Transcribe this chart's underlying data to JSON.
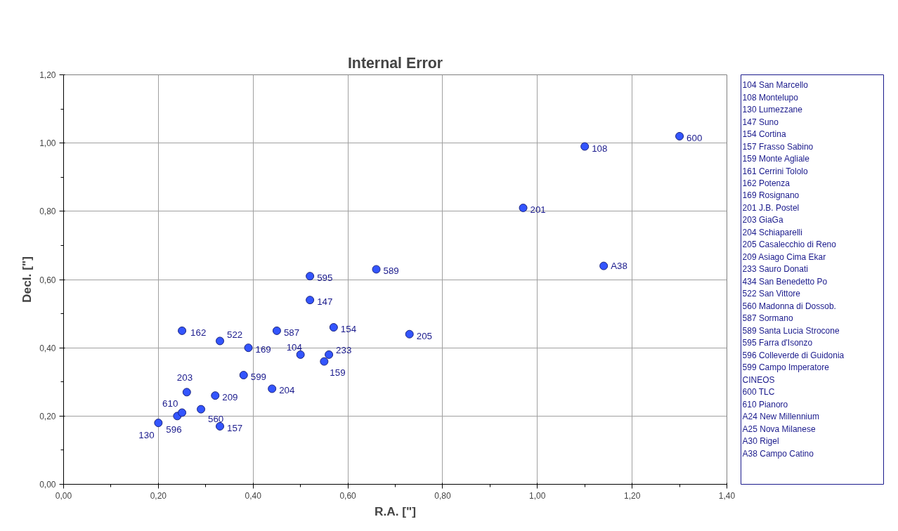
{
  "chart_data": [
    {
      "type": "scatter",
      "title": "Internal Error",
      "xlabel": "R.A. [\"]",
      "ylabel": "Decl. [\"]",
      "xlim": [
        0,
        1.4
      ],
      "ylim": [
        0,
        1.2
      ],
      "xticks": [
        {
          "value": 0,
          "label": "0,00"
        },
        {
          "value": 0.2,
          "label": "0,20"
        },
        {
          "value": 0.4,
          "label": "0,40"
        },
        {
          "value": 0.6,
          "label": "0,60"
        },
        {
          "value": 0.8,
          "label": "0,80"
        },
        {
          "value": 1.0,
          "label": "1,00"
        },
        {
          "value": 1.2,
          "label": "1,20"
        },
        {
          "value": 1.4,
          "label": "1,40"
        }
      ],
      "yticks": [
        {
          "value": 0,
          "label": "0,00"
        },
        {
          "value": 0.2,
          "label": "0,20"
        },
        {
          "value": 0.4,
          "label": "0,40"
        },
        {
          "value": 0.6,
          "label": "0,60"
        },
        {
          "value": 0.8,
          "label": "0,80"
        },
        {
          "value": 1.0,
          "label": "1,00"
        },
        {
          "value": 1.2,
          "label": "1,20"
        }
      ],
      "grid": true,
      "marker": "circle",
      "annotations": [
        {
          "text": "130",
          "x": 0.2,
          "y": 0.18
        },
        {
          "text": "596",
          "x": 0.24,
          "y": 0.2
        },
        {
          "text": "610",
          "x": 0.25,
          "y": 0.21
        },
        {
          "text": "203",
          "x": 0.26,
          "y": 0.27
        },
        {
          "text": "560",
          "x": 0.29,
          "y": 0.22
        },
        {
          "text": "157",
          "x": 0.33,
          "y": 0.17
        },
        {
          "text": "209",
          "x": 0.32,
          "y": 0.26
        },
        {
          "text": "162",
          "x": 0.25,
          "y": 0.45
        },
        {
          "text": "522",
          "x": 0.33,
          "y": 0.42
        },
        {
          "text": "169",
          "x": 0.39,
          "y": 0.4
        },
        {
          "text": "599",
          "x": 0.38,
          "y": 0.32
        },
        {
          "text": "204",
          "x": 0.44,
          "y": 0.28
        },
        {
          "text": "587",
          "x": 0.45,
          "y": 0.45
        },
        {
          "text": "104",
          "x": 0.5,
          "y": 0.38
        },
        {
          "text": "233",
          "x": 0.56,
          "y": 0.38
        },
        {
          "text": "159",
          "x": 0.55,
          "y": 0.36
        },
        {
          "text": "154",
          "x": 0.57,
          "y": 0.46
        },
        {
          "text": "147",
          "x": 0.52,
          "y": 0.54
        },
        {
          "text": "595",
          "x": 0.52,
          "y": 0.61
        },
        {
          "text": "589",
          "x": 0.66,
          "y": 0.63
        },
        {
          "text": "205",
          "x": 0.73,
          "y": 0.44
        },
        {
          "text": "A38",
          "x": 1.14,
          "y": 0.64
        },
        {
          "text": "201",
          "x": 0.97,
          "y": 0.81
        },
        {
          "text": "108",
          "x": 1.1,
          "y": 0.99
        },
        {
          "text": "600",
          "x": 1.3,
          "y": 1.02
        }
      ],
      "series": [
        {
          "color": "#3355ff",
          "x": [
            0.2,
            0.24,
            0.25,
            0.26,
            0.29,
            0.33,
            0.32,
            0.25,
            0.33,
            0.39,
            0.38,
            0.44,
            0.45,
            0.5,
            0.56,
            0.55,
            0.57,
            0.52,
            0.52,
            0.66,
            0.73,
            1.14,
            0.97,
            1.1,
            1.3
          ],
          "values": [
            0.18,
            0.2,
            0.21,
            0.27,
            0.22,
            0.17,
            0.26,
            0.45,
            0.42,
            0.4,
            0.32,
            0.28,
            0.45,
            0.38,
            0.38,
            0.36,
            0.46,
            0.54,
            0.61,
            0.63,
            0.44,
            0.64,
            0.81,
            0.99,
            1.02
          ]
        }
      ]
    },
    {
      "type": "other",
      "annotations": [
        "104   San Marcello",
        "108   Montelupo",
        "130   Lumezzane",
        "147   Suno",
        "154   Cortina",
        "157   Frasso Sabino",
        "159   Monte Agliale",
        "161   Cerrini Tololo",
        "162   Potenza",
        "169   Rosignano",
        "201   J.B. Postel",
        "203   GiaGa",
        "204   Schiaparelli",
        "205   Casalecchio di Reno",
        "209   Asiago Cima Ekar",
        "233   Sauro Donati",
        "434   San Benedetto Po",
        "522   San Vittore",
        "560   Madonna di Dossob.",
        "587   Sormano",
        "589   Santa Lucia Strocone",
        "595   Farra d'Isonzo",
        "596   Colleverde di Guidonia",
        "599   Campo Imperatore",
        "CINEOS",
        "600   TLC",
        "610   Pianoro",
        "A24   New Millennium",
        "A25   Nova Milanese",
        "A30   Rigel",
        "A38   Campo Catino"
      ]
    }
  ]
}
